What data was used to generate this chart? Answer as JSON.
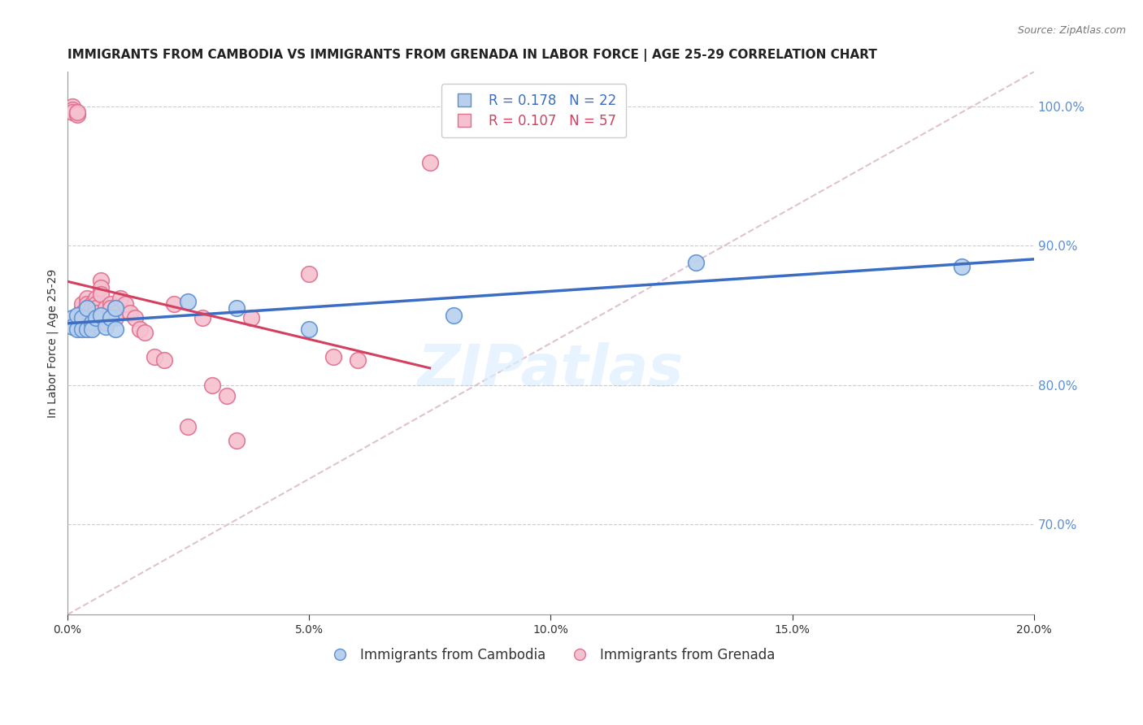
{
  "title": "IMMIGRANTS FROM CAMBODIA VS IMMIGRANTS FROM GRENADA IN LABOR FORCE | AGE 25-29 CORRELATION CHART",
  "source": "Source: ZipAtlas.com",
  "ylabel": "In Labor Force | Age 25-29",
  "xlim": [
    0.0,
    0.2
  ],
  "ylim": [
    0.635,
    1.025
  ],
  "yticks": [
    0.7,
    0.8,
    0.9,
    1.0
  ],
  "xticks": [
    0.0,
    0.05,
    0.1,
    0.15,
    0.2
  ],
  "background_color": "#ffffff",
  "grid_color": "#cccccc",
  "cambodia_color": "#b8d0ed",
  "cambodia_edge_color": "#5b8fd4",
  "grenada_color": "#f5c0cf",
  "grenada_edge_color": "#e07090",
  "cambodia_R": 0.178,
  "cambodia_N": 22,
  "grenada_R": 0.107,
  "grenada_N": 57,
  "cambodia_line_color": "#3b6dc4",
  "grenada_line_color": "#d44060",
  "diagonal_color": "#ddbbcc",
  "right_axis_color": "#5b8fd4",
  "cambodia_scatter_x": [
    0.001,
    0.001,
    0.002,
    0.002,
    0.003,
    0.003,
    0.004,
    0.004,
    0.005,
    0.005,
    0.006,
    0.007,
    0.008,
    0.009,
    0.01,
    0.01,
    0.025,
    0.035,
    0.05,
    0.08,
    0.13,
    0.185
  ],
  "cambodia_scatter_y": [
    0.848,
    0.842,
    0.85,
    0.84,
    0.848,
    0.84,
    0.855,
    0.84,
    0.845,
    0.84,
    0.848,
    0.85,
    0.842,
    0.848,
    0.855,
    0.84,
    0.86,
    0.855,
    0.84,
    0.85,
    0.888,
    0.885
  ],
  "grenada_scatter_x": [
    0.001,
    0.001,
    0.001,
    0.002,
    0.002,
    0.002,
    0.003,
    0.003,
    0.003,
    0.003,
    0.003,
    0.004,
    0.004,
    0.004,
    0.004,
    0.005,
    0.005,
    0.005,
    0.005,
    0.005,
    0.005,
    0.005,
    0.006,
    0.006,
    0.006,
    0.006,
    0.007,
    0.007,
    0.007,
    0.008,
    0.008,
    0.008,
    0.009,
    0.009,
    0.009,
    0.01,
    0.01,
    0.01,
    0.011,
    0.012,
    0.013,
    0.014,
    0.015,
    0.016,
    0.018,
    0.02,
    0.022,
    0.025,
    0.028,
    0.03,
    0.033,
    0.035,
    0.038,
    0.05,
    0.055,
    0.06,
    0.075
  ],
  "grenada_scatter_y": [
    1.0,
    0.998,
    0.996,
    0.995,
    0.994,
    0.996,
    0.855,
    0.858,
    0.852,
    0.848,
    0.845,
    0.862,
    0.858,
    0.855,
    0.848,
    0.858,
    0.852,
    0.848,
    0.845,
    0.855,
    0.85,
    0.842,
    0.862,
    0.858,
    0.855,
    0.852,
    0.875,
    0.87,
    0.865,
    0.855,
    0.848,
    0.845,
    0.858,
    0.855,
    0.848,
    0.855,
    0.852,
    0.848,
    0.862,
    0.858,
    0.852,
    0.848,
    0.84,
    0.838,
    0.82,
    0.818,
    0.858,
    0.77,
    0.848,
    0.8,
    0.792,
    0.76,
    0.848,
    0.88,
    0.82,
    0.818,
    0.96
  ],
  "title_fontsize": 11,
  "source_fontsize": 9,
  "axis_label_fontsize": 10,
  "tick_fontsize": 10,
  "legend_fontsize": 12
}
